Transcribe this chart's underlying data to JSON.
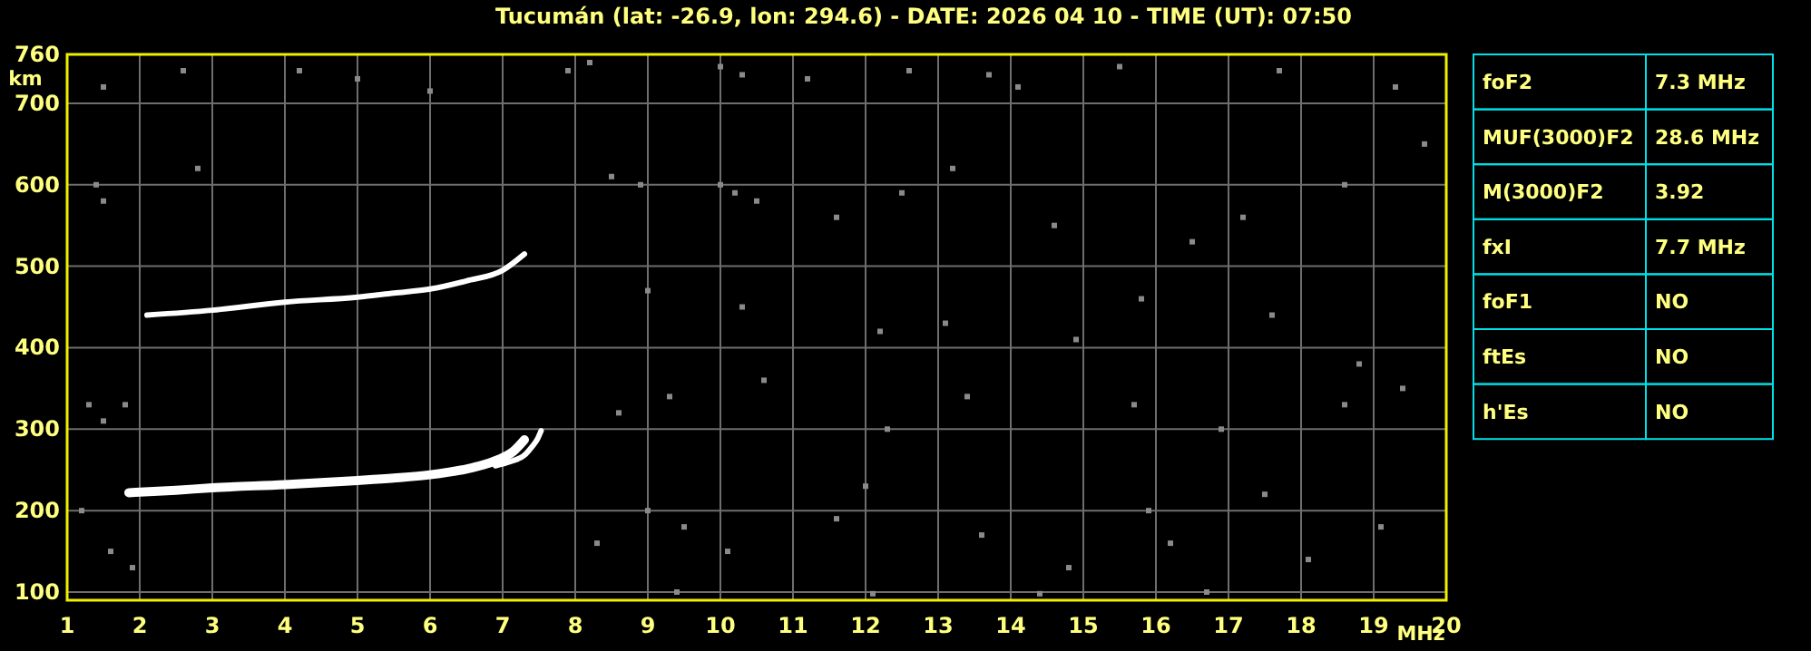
{
  "chart_data": [
    {
      "type": "scatter",
      "title": "Tucumán (lat: -26.9, lon: 294.6) - DATE: 2026 04 10 - TIME (UT): 07:50",
      "xlabel": "MHz",
      "ylabel": "km",
      "xlim": [
        1,
        20
      ],
      "ylim": [
        90,
        760
      ],
      "xticks": [
        1,
        2,
        3,
        4,
        5,
        6,
        7,
        8,
        9,
        10,
        11,
        12,
        13,
        14,
        15,
        16,
        17,
        18,
        19,
        20
      ],
      "yticks": [
        100,
        200,
        300,
        400,
        500,
        600,
        700,
        760
      ],
      "grid": true,
      "series": [
        {
          "type": "line",
          "color": "#ffffff",
          "x": [
            1.85,
            2.5,
            3,
            4,
            5,
            5.5,
            6,
            6.5,
            6.8,
            7,
            7.15,
            7.3
          ],
          "values": [
            222,
            225,
            228,
            232,
            237,
            240,
            244,
            251,
            258,
            265,
            273,
            287
          ]
        },
        {
          "type": "line",
          "color": "#ffffff",
          "x": [
            6.9,
            7.1,
            7.3,
            7.4,
            7.48,
            7.53
          ],
          "values": [
            255,
            260,
            268,
            278,
            288,
            298
          ]
        },
        {
          "type": "line",
          "color": "#ffffff",
          "x": [
            2.1,
            3,
            4,
            5,
            5.5,
            6,
            6.5,
            7,
            7.3
          ],
          "values": [
            440,
            446,
            456,
            462,
            467,
            472,
            482,
            495,
            515
          ]
        },
        {
          "type": "scatter",
          "marker": "square",
          "color": "#8a8a8a",
          "x": [
            1.5,
            2.6,
            4.2,
            5,
            6,
            7.9,
            8.2,
            10,
            10.3,
            11.2,
            12.6,
            13.7,
            14.1,
            15.5,
            17.7,
            19.3,
            1.4,
            1.5,
            2.8,
            8.5,
            8.9,
            10,
            10.2,
            10.5,
            11.6,
            12.5,
            13.2,
            14.6,
            16.5,
            17.2,
            18.6,
            19.7,
            9,
            10.3,
            12.2,
            13.1,
            14.9,
            15.8,
            17.6,
            18.8,
            1.3,
            1.5,
            1.8,
            8.6,
            9.3,
            10.6,
            12.3,
            13.4,
            15.7,
            16.9,
            18.6,
            19.4,
            1.2,
            1.6,
            1.9,
            8.3,
            9,
            9.5,
            10.1,
            11.6,
            12,
            13.6,
            14.8,
            15.9,
            16.2,
            17.5,
            18.1,
            19.1,
            9.4,
            12.1,
            14.4,
            16.7
          ],
          "values": [
            720,
            740,
            740,
            730,
            715,
            740,
            750,
            745,
            735,
            730,
            740,
            735,
            720,
            745,
            740,
            720,
            600,
            580,
            620,
            610,
            600,
            600,
            590,
            580,
            560,
            590,
            620,
            550,
            530,
            560,
            600,
            650,
            470,
            450,
            420,
            430,
            410,
            460,
            440,
            380,
            330,
            310,
            330,
            320,
            340,
            360,
            300,
            340,
            330,
            300,
            330,
            350,
            200,
            150,
            130,
            160,
            200,
            180,
            150,
            190,
            230,
            170,
            130,
            200,
            160,
            220,
            140,
            180,
            100,
            98,
            98,
            100
          ]
        }
      ]
    },
    {
      "type": "other",
      "categories": [
        "foF2",
        "MUF(3000)F2",
        "M(3000)F2",
        "fxI",
        "foF1",
        "ftEs",
        "h'Es"
      ],
      "value_labels": [
        "7.3 MHz",
        "28.6 MHz",
        "3.92",
        "7.7 MHz",
        "NO",
        "NO",
        "NO"
      ]
    }
  ]
}
